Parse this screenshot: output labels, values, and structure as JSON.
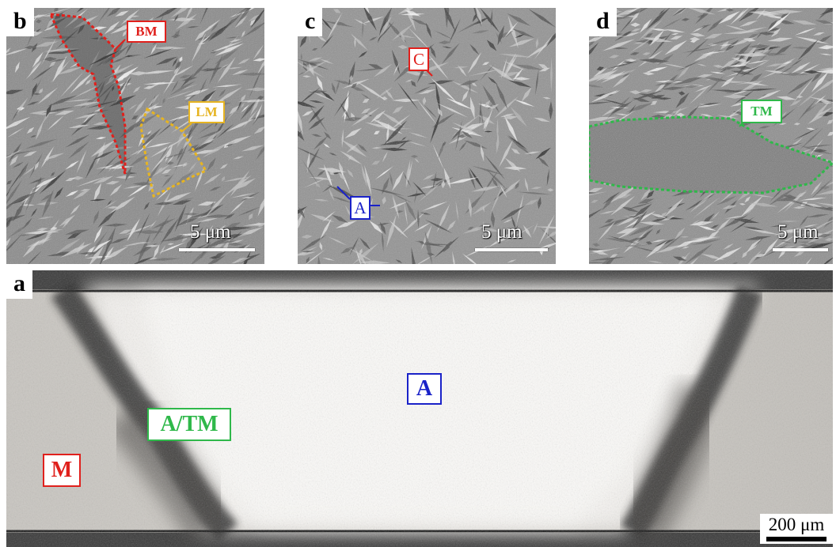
{
  "figure": {
    "panel_b": {
      "letter": "b",
      "scale_label": "5 μm",
      "labels": {
        "bm": "BM",
        "lm": "LM"
      }
    },
    "panel_c": {
      "letter": "c",
      "scale_label": "5 μm",
      "labels": {
        "c": "C",
        "a": "A"
      }
    },
    "panel_d": {
      "letter": "d",
      "scale_label": "5 μm",
      "labels": {
        "tm": "TM"
      }
    },
    "panel_a": {
      "letter": "a",
      "scale_label": "200 μm",
      "labels": {
        "a": "A",
        "atm": "A/TM",
        "m": "M"
      }
    }
  },
  "colors": {
    "red": "#e0201c",
    "yellow": "#e6b422",
    "blue": "#1a22c8",
    "green": "#2fb84a"
  }
}
